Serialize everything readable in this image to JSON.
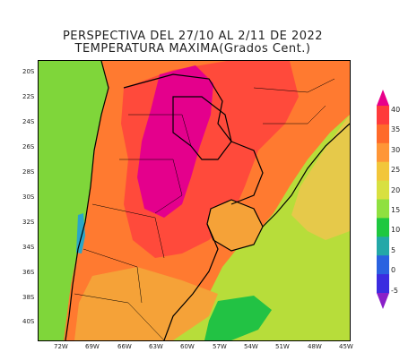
{
  "title": {
    "line1": "PERSPECTIVA DEL 27/10 AL 2/11 DE 2022",
    "line2": "TEMPERATURA MAXIMA(Grados Cent.)"
  },
  "latitude_labels": [
    "20S",
    "22S",
    "24S",
    "26S",
    "28S",
    "30S",
    "32S",
    "34S",
    "36S",
    "38S",
    "40S"
  ],
  "longitude_labels": [
    "72W",
    "69W",
    "66W",
    "63W",
    "60W",
    "57W",
    "54W",
    "51W",
    "48W",
    "45W"
  ],
  "colorbar": {
    "labels": [
      "40",
      "35",
      "30",
      "25",
      "20",
      "15",
      "10",
      "5",
      "0",
      "-5"
    ],
    "colors": [
      "#e8008a",
      "#ff3b3b",
      "#ff6a2a",
      "#ff9636",
      "#f2c63a",
      "#d8e040",
      "#8fe040",
      "#1ec840",
      "#23a8a8",
      "#2a62e0",
      "#3b2ce0",
      "#8a20c8"
    ]
  },
  "map_colors": {
    "ocean": "#b7dd3a",
    "very_hot": "#e4008c",
    "hot": "#ff4a3b",
    "warm": "#ff7a30",
    "mild_warm": "#f5a238",
    "mild": "#e6c94a",
    "cool": "#7fd63a",
    "cold": "#22c244",
    "cyan": "#2aa6c8",
    "borders": "#000000"
  }
}
